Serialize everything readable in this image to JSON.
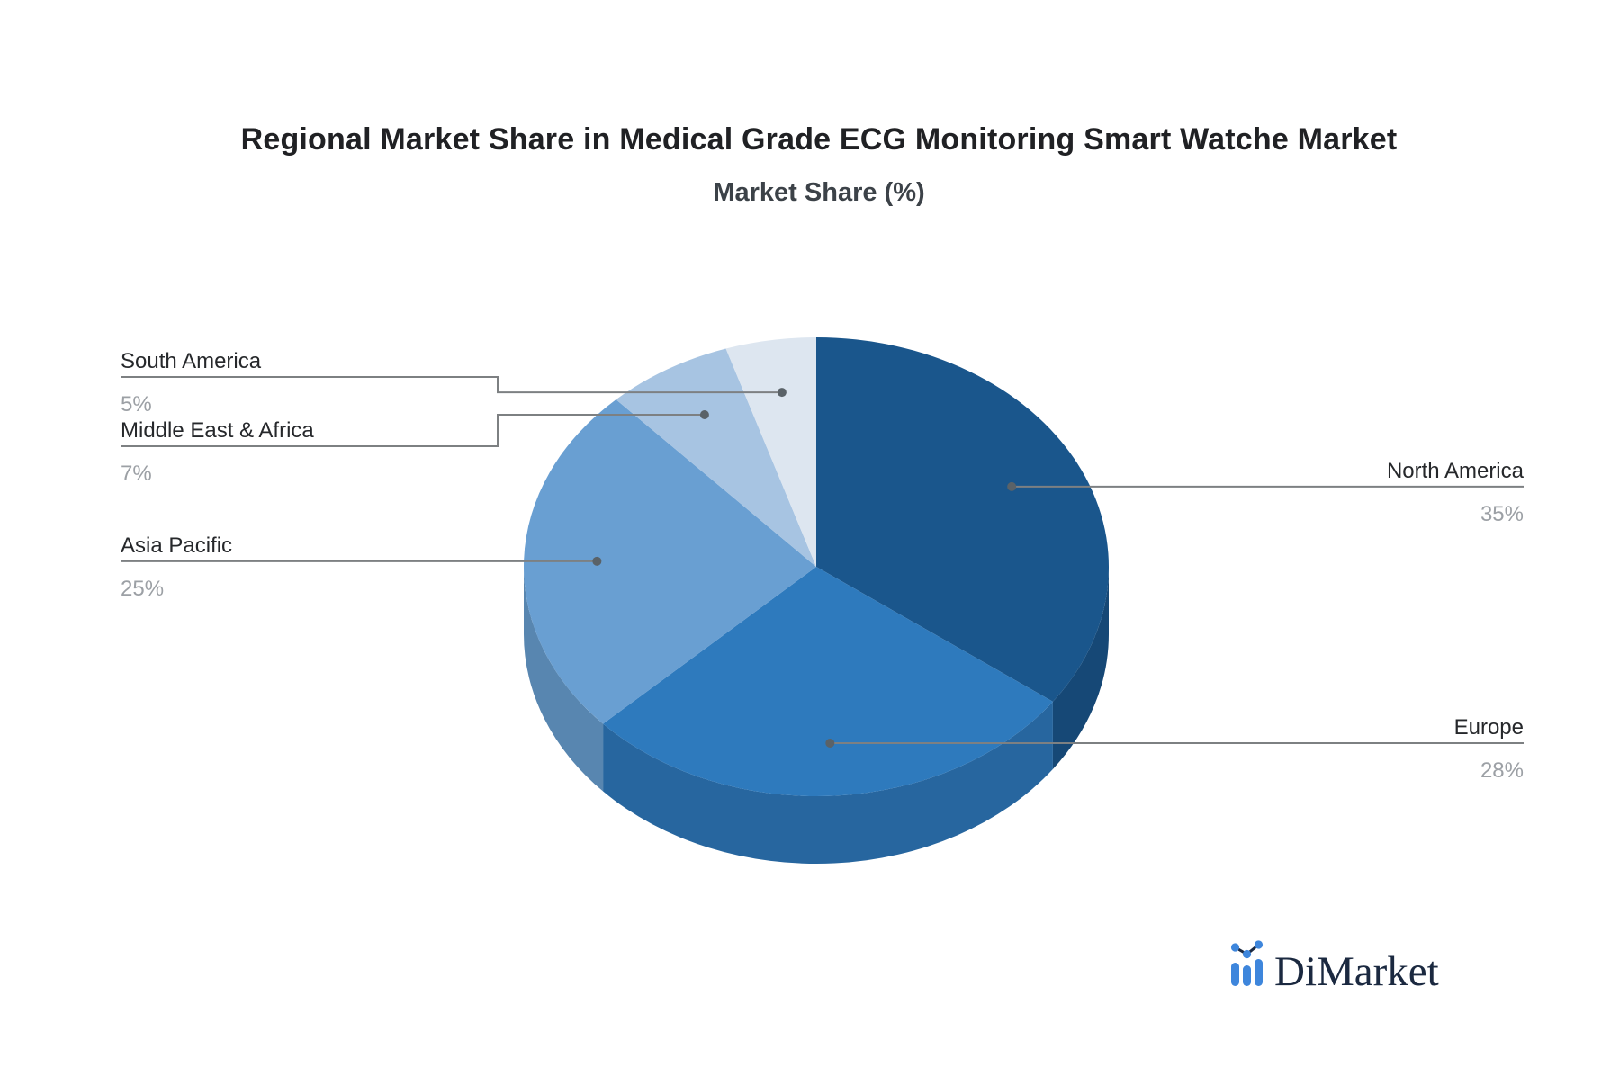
{
  "chart_data": {
    "type": "pie",
    "title": "Regional Market Share in Medical Grade ECG Monitoring Smart Watche Market",
    "subtitle": "Market Share (%)",
    "unit": "%",
    "labels": [
      "North America",
      "Europe",
      "Asia Pacific",
      "Middle East & Africa",
      "South America"
    ],
    "values": [
      35,
      28,
      25,
      7,
      5
    ],
    "value_labels": [
      "35%",
      "28%",
      "25%",
      "7%",
      "5%"
    ],
    "colors": [
      "#1A568C",
      "#2E7ABD",
      "#699FD2",
      "#A7C4E2",
      "#DDE6F0"
    ],
    "effect": "3d",
    "start_angle_deg": 0,
    "direction": "clockwise",
    "label_layout": "callout-lines",
    "background": "#FFFFFF",
    "callout_line_color": "#7D8082",
    "callout_dot_color": "#5A6268",
    "label_color": "#26282B",
    "value_color": "#9CA0A5"
  },
  "watermark": {
    "brand": "DiMarket",
    "icon": "bar-line-chart-logo-icon",
    "icon_color": "#3E86DC",
    "text_color": "#1B2940"
  }
}
